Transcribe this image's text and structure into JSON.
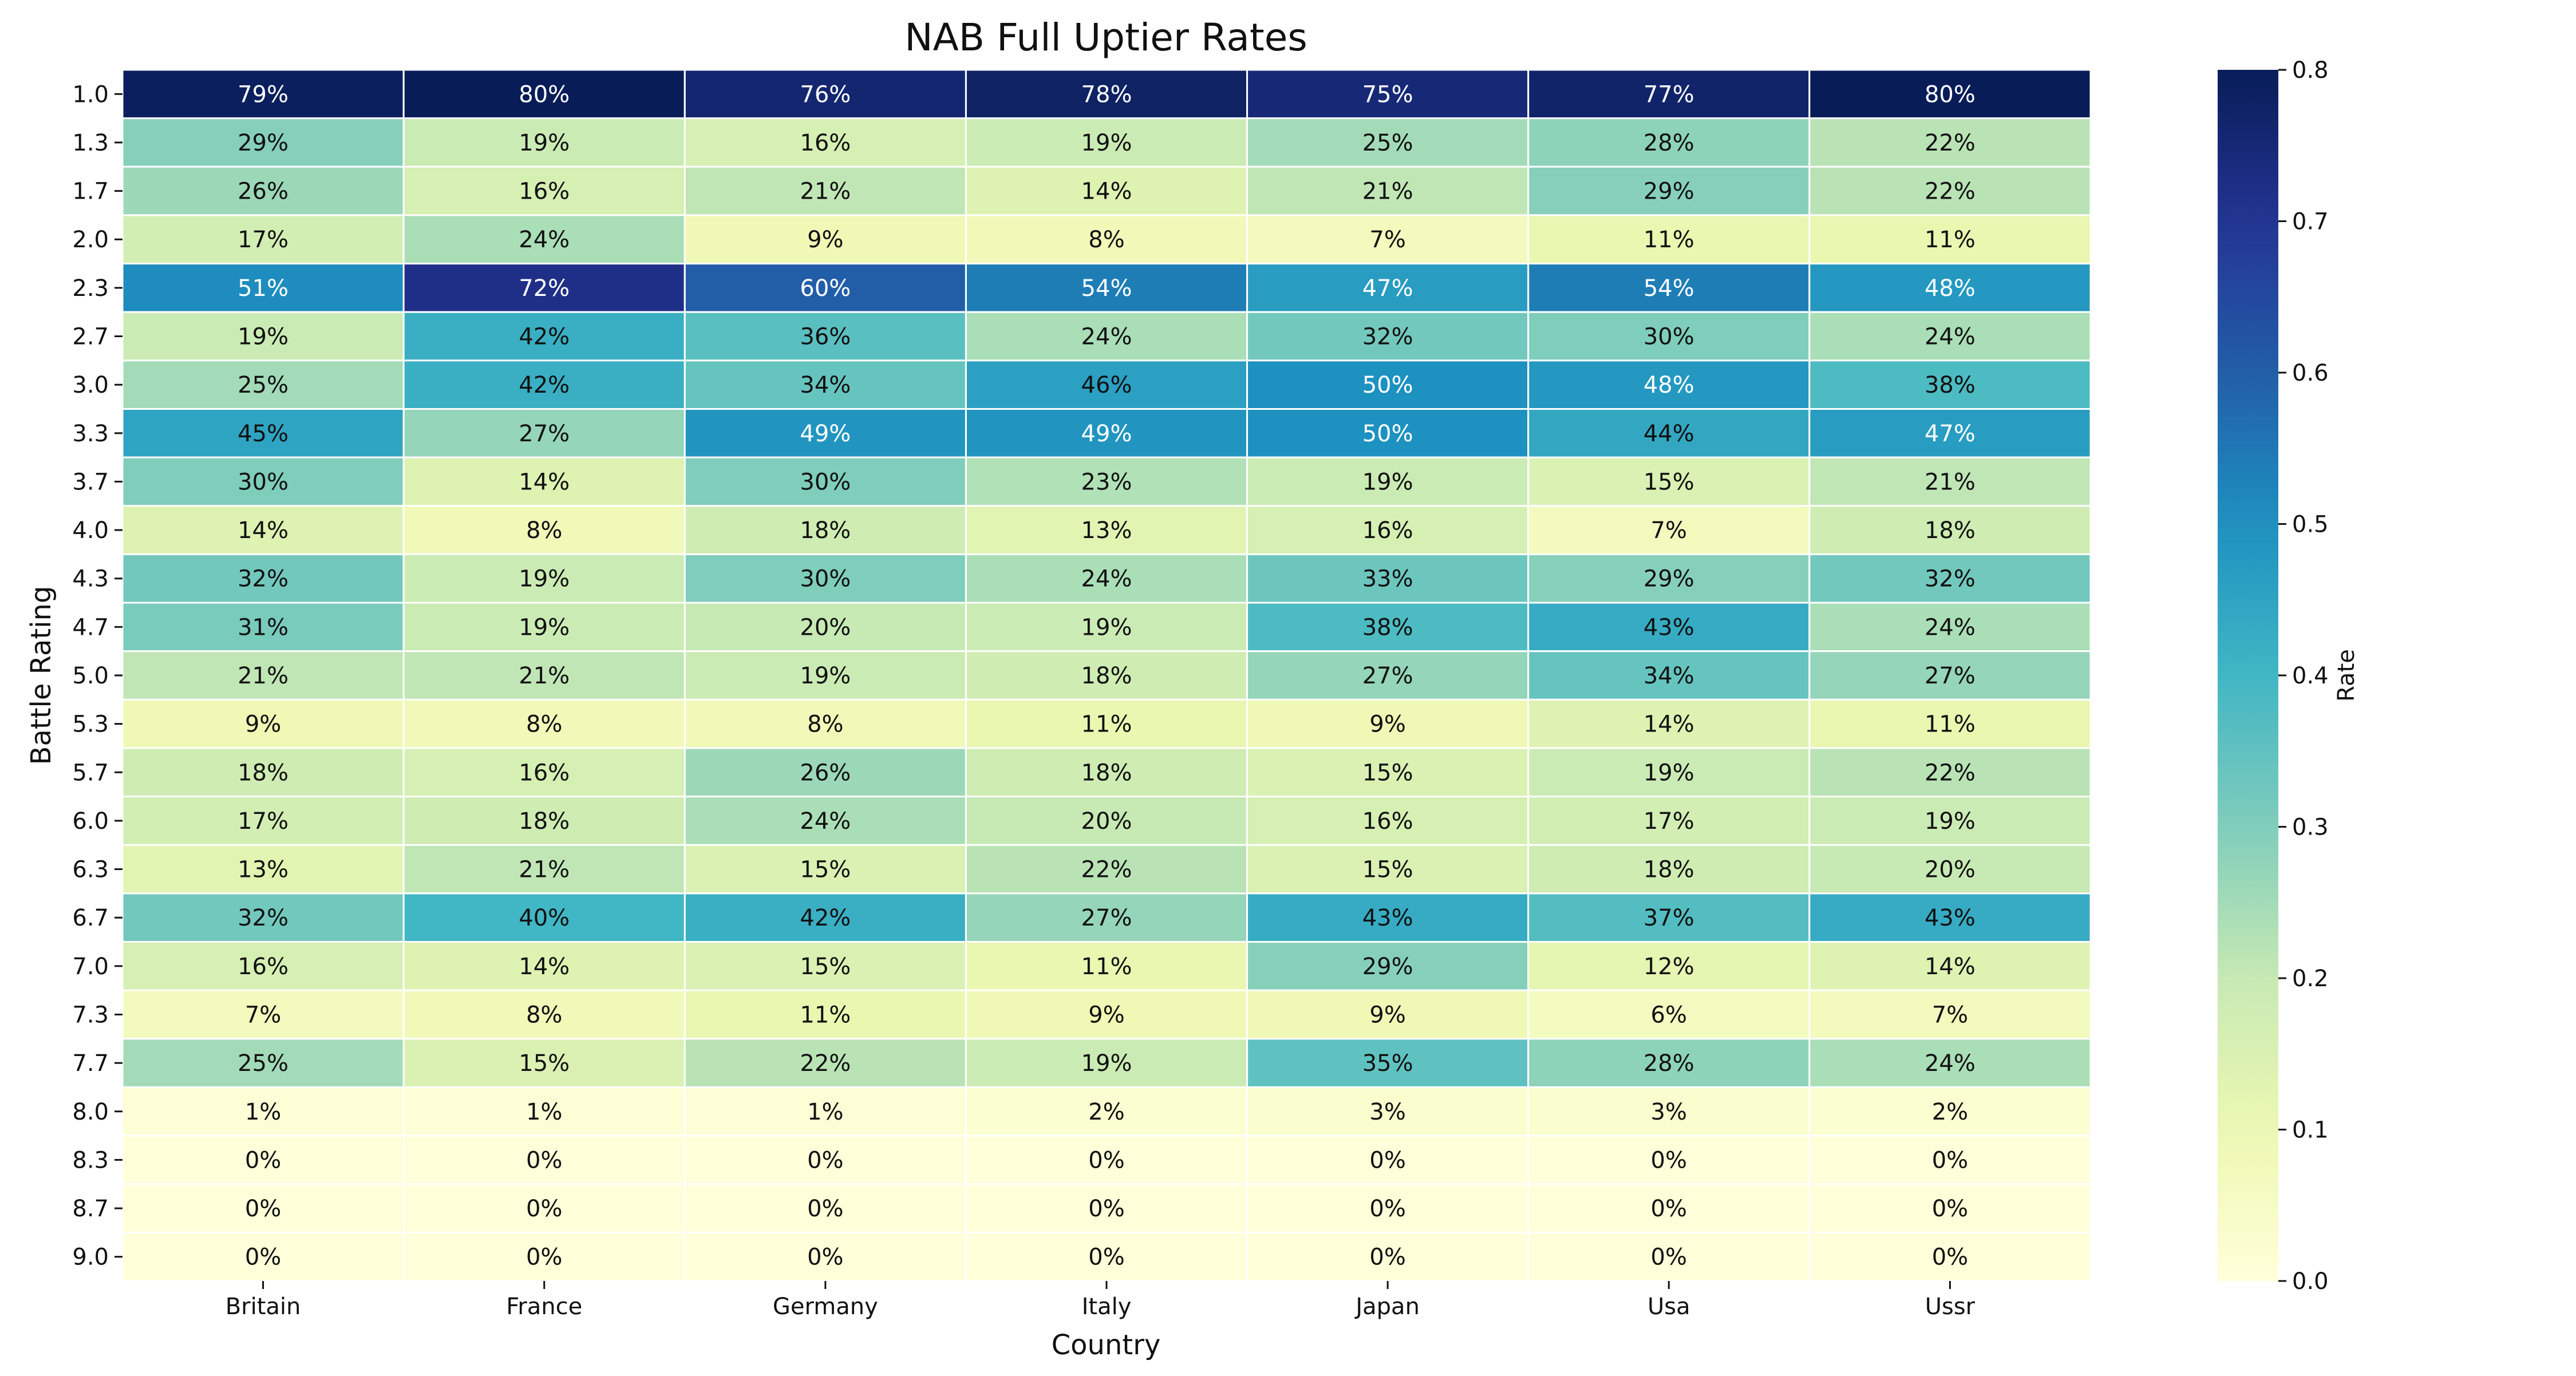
{
  "chart_data": {
    "type": "heatmap",
    "title": "NAB Full Uptier Rates",
    "xlabel": "Country",
    "ylabel": "Battle Rating",
    "colorbar_label": "Rate",
    "colorbar_range": [
      0,
      0.8
    ],
    "colorbar_ticks": [
      "0.0",
      "0.1",
      "0.2",
      "0.3",
      "0.4",
      "0.5",
      "0.6",
      "0.7",
      "0.8"
    ],
    "colormap": "YlGnBu",
    "cell_border_color": "#ffffff",
    "columns": [
      "Britain",
      "France",
      "Germany",
      "Italy",
      "Japan",
      "Usa",
      "Ussr"
    ],
    "rows": [
      "1.0",
      "1.3",
      "1.7",
      "2.0",
      "2.3",
      "2.7",
      "3.0",
      "3.3",
      "3.7",
      "4.0",
      "4.3",
      "4.7",
      "5.0",
      "5.3",
      "5.7",
      "6.0",
      "6.3",
      "6.7",
      "7.0",
      "7.3",
      "7.7",
      "8.0",
      "8.3",
      "8.7",
      "9.0"
    ],
    "values": [
      [
        0.79,
        0.8,
        0.76,
        0.78,
        0.75,
        0.77,
        0.8
      ],
      [
        0.29,
        0.19,
        0.16,
        0.19,
        0.25,
        0.28,
        0.22
      ],
      [
        0.26,
        0.16,
        0.21,
        0.14,
        0.21,
        0.29,
        0.22
      ],
      [
        0.17,
        0.24,
        0.09,
        0.08,
        0.07,
        0.11,
        0.11
      ],
      [
        0.51,
        0.72,
        0.6,
        0.54,
        0.47,
        0.54,
        0.48
      ],
      [
        0.19,
        0.42,
        0.36,
        0.24,
        0.32,
        0.3,
        0.24
      ],
      [
        0.25,
        0.42,
        0.34,
        0.46,
        0.5,
        0.48,
        0.38
      ],
      [
        0.45,
        0.27,
        0.49,
        0.49,
        0.5,
        0.44,
        0.47
      ],
      [
        0.3,
        0.14,
        0.3,
        0.23,
        0.19,
        0.15,
        0.21
      ],
      [
        0.14,
        0.08,
        0.18,
        0.13,
        0.16,
        0.07,
        0.18
      ],
      [
        0.32,
        0.19,
        0.3,
        0.24,
        0.33,
        0.29,
        0.32
      ],
      [
        0.31,
        0.19,
        0.2,
        0.19,
        0.38,
        0.43,
        0.24
      ],
      [
        0.21,
        0.21,
        0.19,
        0.18,
        0.27,
        0.34,
        0.27
      ],
      [
        0.09,
        0.08,
        0.08,
        0.11,
        0.09,
        0.14,
        0.11
      ],
      [
        0.18,
        0.16,
        0.26,
        0.18,
        0.15,
        0.19,
        0.22
      ],
      [
        0.17,
        0.18,
        0.24,
        0.2,
        0.16,
        0.17,
        0.19
      ],
      [
        0.13,
        0.21,
        0.15,
        0.22,
        0.15,
        0.18,
        0.2
      ],
      [
        0.32,
        0.4,
        0.42,
        0.27,
        0.43,
        0.37,
        0.43
      ],
      [
        0.16,
        0.14,
        0.15,
        0.11,
        0.29,
        0.12,
        0.14
      ],
      [
        0.07,
        0.08,
        0.11,
        0.09,
        0.09,
        0.06,
        0.07
      ],
      [
        0.25,
        0.15,
        0.22,
        0.19,
        0.35,
        0.28,
        0.24
      ],
      [
        0.01,
        0.01,
        0.01,
        0.02,
        0.03,
        0.03,
        0.02
      ],
      [
        0.0,
        0.0,
        0.0,
        0.0,
        0.0,
        0.0,
        0.0
      ],
      [
        0.0,
        0.0,
        0.0,
        0.0,
        0.0,
        0.0,
        0.0
      ],
      [
        0.0,
        0.0,
        0.0,
        0.0,
        0.0,
        0.0,
        0.0
      ]
    ],
    "labels": [
      [
        "79%",
        "80%",
        "76%",
        "78%",
        "75%",
        "77%",
        "80%"
      ],
      [
        "29%",
        "19%",
        "16%",
        "19%",
        "25%",
        "28%",
        "22%"
      ],
      [
        "26%",
        "16%",
        "21%",
        "14%",
        "21%",
        "29%",
        "22%"
      ],
      [
        "17%",
        "24%",
        "9%",
        "8%",
        "7%",
        "11%",
        "11%"
      ],
      [
        "51%",
        "72%",
        "60%",
        "54%",
        "47%",
        "54%",
        "48%"
      ],
      [
        "19%",
        "42%",
        "36%",
        "24%",
        "32%",
        "30%",
        "24%"
      ],
      [
        "25%",
        "42%",
        "34%",
        "46%",
        "50%",
        "48%",
        "38%"
      ],
      [
        "45%",
        "27%",
        "49%",
        "49%",
        "50%",
        "44%",
        "47%"
      ],
      [
        "30%",
        "14%",
        "30%",
        "23%",
        "19%",
        "15%",
        "21%"
      ],
      [
        "14%",
        "8%",
        "18%",
        "13%",
        "16%",
        "7%",
        "18%"
      ],
      [
        "32%",
        "19%",
        "30%",
        "24%",
        "33%",
        "29%",
        "32%"
      ],
      [
        "31%",
        "19%",
        "20%",
        "19%",
        "38%",
        "43%",
        "24%"
      ],
      [
        "21%",
        "21%",
        "19%",
        "18%",
        "27%",
        "34%",
        "27%"
      ],
      [
        "9%",
        "8%",
        "8%",
        "11%",
        "9%",
        "14%",
        "11%"
      ],
      [
        "18%",
        "16%",
        "26%",
        "18%",
        "15%",
        "19%",
        "22%"
      ],
      [
        "17%",
        "18%",
        "24%",
        "20%",
        "16%",
        "17%",
        "19%"
      ],
      [
        "13%",
        "21%",
        "15%",
        "22%",
        "15%",
        "18%",
        "20%"
      ],
      [
        "32%",
        "40%",
        "42%",
        "27%",
        "43%",
        "37%",
        "43%"
      ],
      [
        "16%",
        "14%",
        "15%",
        "11%",
        "29%",
        "12%",
        "14%"
      ],
      [
        "7%",
        "8%",
        "11%",
        "9%",
        "9%",
        "6%",
        "7%"
      ],
      [
        "25%",
        "15%",
        "22%",
        "19%",
        "35%",
        "28%",
        "24%"
      ],
      [
        "1%",
        "1%",
        "1%",
        "2%",
        "3%",
        "3%",
        "2%"
      ],
      [
        "0%",
        "0%",
        "0%",
        "0%",
        "0%",
        "0%",
        "0%"
      ],
      [
        "0%",
        "0%",
        "0%",
        "0%",
        "0%",
        "0%",
        "0%"
      ],
      [
        "0%",
        "0%",
        "0%",
        "0%",
        "0%",
        "0%",
        "0%"
      ]
    ]
  }
}
